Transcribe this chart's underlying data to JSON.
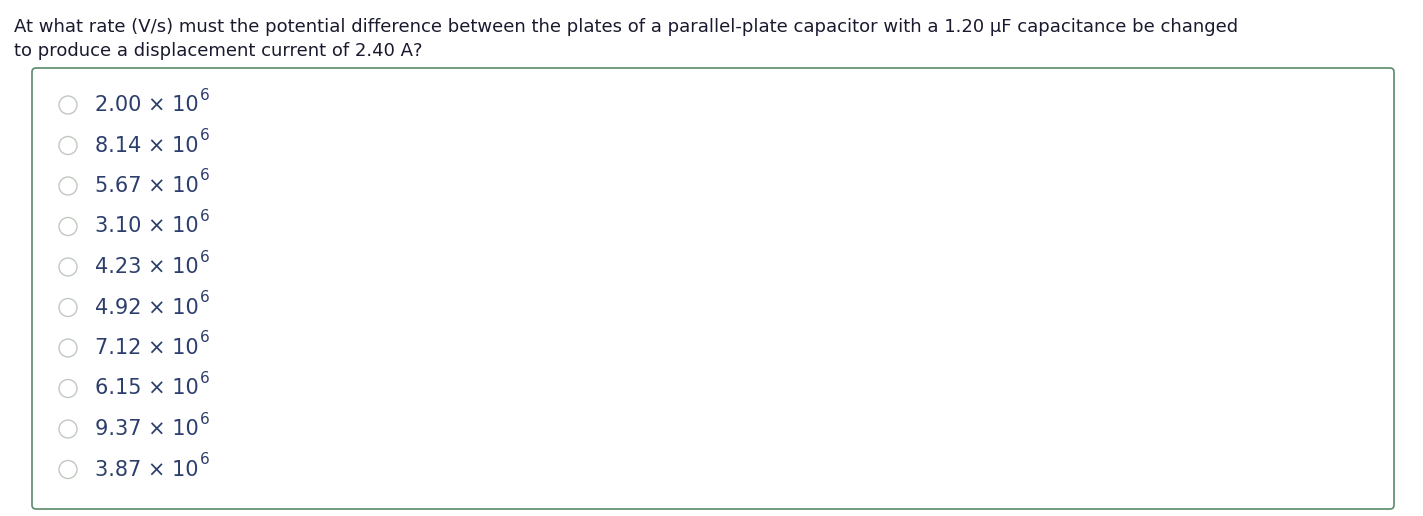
{
  "question_line1": "At what rate (V/s) must the potential difference between the plates of a parallel-plate capacitor with a 1.20 μF capacitance be changed",
  "question_line2": "to produce a displacement current of 2.40 A?",
  "choices_base": [
    "2.00 × 10",
    "8.14 × 10",
    "5.67 × 10",
    "3.10 × 10",
    "4.23 × 10",
    "4.92 × 10",
    "7.12 × 10",
    "6.15 × 10",
    "9.37 × 10",
    "3.87 × 10"
  ],
  "superscript": "6",
  "bg_color": "#ffffff",
  "text_color": "#2c3e6b",
  "question_color": "#1a1a2e",
  "box_border_color": "#5a8a6a",
  "circle_edge_color": "#c0c8c0",
  "question_fontsize": 13.0,
  "choice_fontsize": 15.0,
  "sup_fontsize": 11.0,
  "fig_width": 14.23,
  "fig_height": 5.16,
  "dpi": 100
}
